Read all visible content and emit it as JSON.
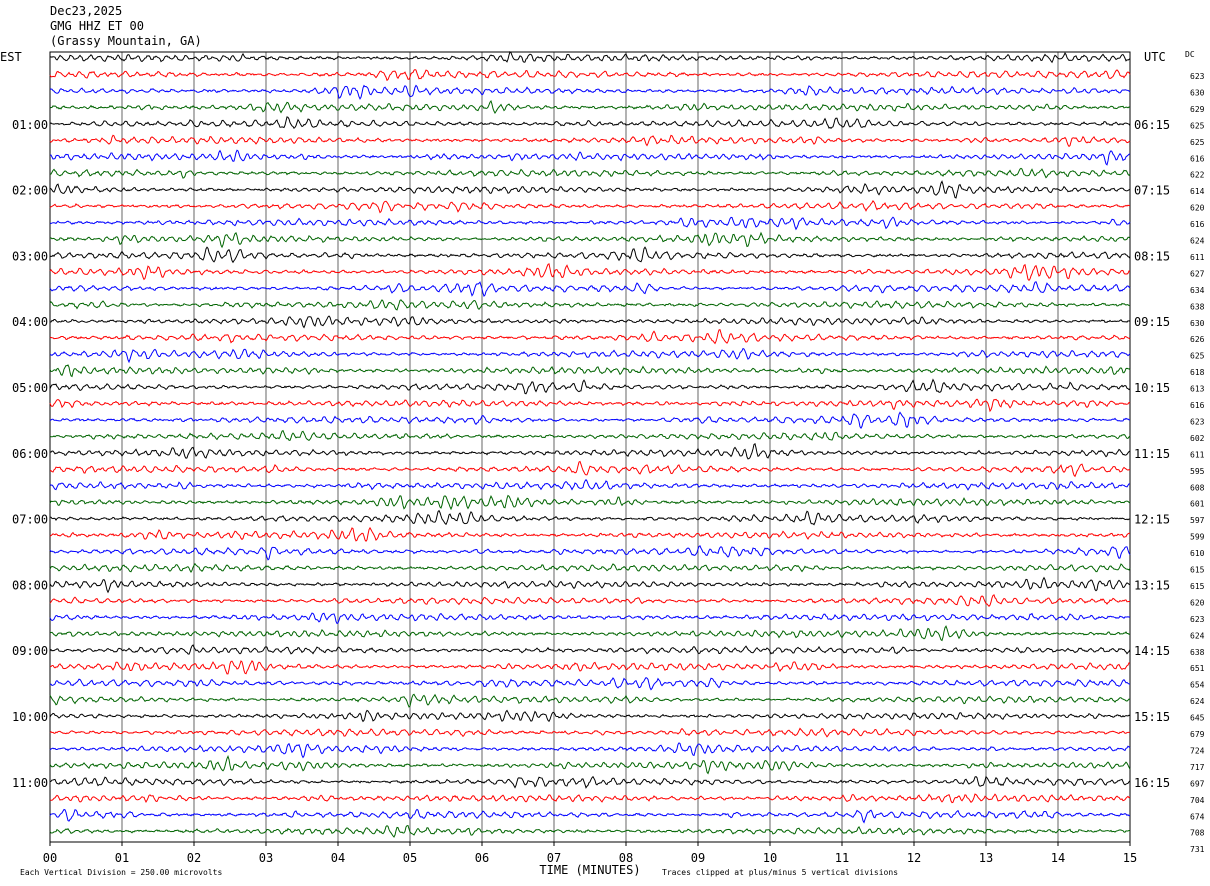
{
  "header": {
    "date": "Dec23,2025",
    "station": "GMG HHZ ET 00",
    "location": "(Grassy Mountain, GA)"
  },
  "chart_data": {
    "type": "line",
    "title": "Dec23,2025 GMG HHZ ET 00 (Grassy Mountain, GA)",
    "left_axis_label": "EST",
    "right_axis_label": "UTC",
    "dc_label": "DC",
    "xlabel": "TIME (MINUTES)",
    "xlim": [
      0,
      15
    ],
    "x_ticks": [
      "00",
      "01",
      "02",
      "03",
      "04",
      "05",
      "06",
      "07",
      "08",
      "09",
      "10",
      "11",
      "12",
      "13",
      "14",
      "15"
    ],
    "left_hour_labels": [
      "01:00",
      "02:00",
      "03:00",
      "04:00",
      "05:00",
      "06:00",
      "07:00",
      "08:00",
      "09:00",
      "10:00",
      "11:00"
    ],
    "right_hour_labels": [
      "06:15",
      "07:15",
      "08:15",
      "09:15",
      "10:15",
      "11:15",
      "12:15",
      "13:15",
      "14:15",
      "15:15",
      "16:15"
    ],
    "trace_colors": [
      "#000000",
      "#ff0000",
      "#0000ff",
      "#006400"
    ],
    "dc_offsets": [
      623,
      630,
      629,
      625,
      625,
      616,
      622,
      614,
      620,
      616,
      624,
      611,
      627,
      634,
      638,
      630,
      626,
      625,
      618,
      613,
      616,
      623,
      602,
      611,
      595,
      608,
      601,
      597,
      599,
      610,
      615,
      615,
      620,
      623,
      624,
      638,
      651,
      654,
      624,
      645,
      679,
      724,
      717,
      697,
      704,
      674,
      708,
      731
    ],
    "grid": true,
    "footer_left": "Each Vertical Division =  250.00 microvolts",
    "footer_right": "Traces clipped at plus/minus 5 vertical divisions"
  }
}
